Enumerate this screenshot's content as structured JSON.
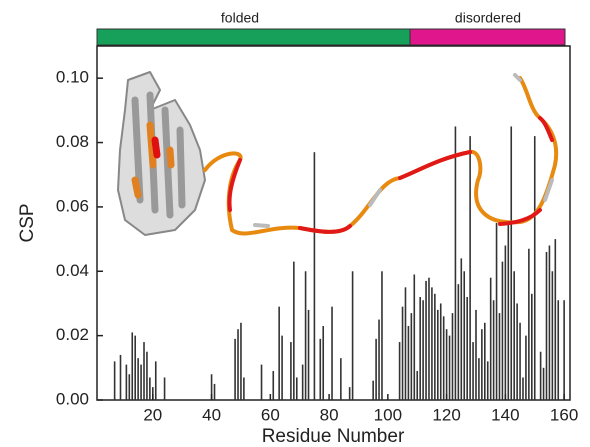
{
  "chart_data": {
    "type": "bar",
    "xlabel": "Residue Number",
    "ylabel": "CSP",
    "regions": [
      "folded",
      "disordered"
    ],
    "color": "#333333",
    "x": [
      7,
      9,
      11,
      12,
      13,
      14,
      15,
      16,
      17,
      18,
      19,
      20,
      21,
      24,
      40,
      41,
      48,
      49,
      50,
      51,
      57,
      61,
      63,
      64,
      67,
      68,
      69,
      71,
      72,
      73,
      75,
      77,
      78,
      81,
      84,
      87,
      88,
      95,
      96,
      97,
      98,
      104,
      105,
      106,
      107,
      108,
      109,
      110,
      111,
      112,
      113,
      114,
      115,
      116,
      117,
      118,
      119,
      120,
      121,
      122,
      123,
      124,
      125,
      126,
      127,
      128,
      129,
      130,
      131,
      132,
      133,
      134,
      135,
      136,
      137,
      138,
      139,
      140,
      141,
      142,
      143,
      144,
      145,
      146,
      147,
      148,
      149,
      150,
      152,
      153,
      154,
      155,
      156,
      157,
      158,
      160
    ],
    "values": [
      0.012,
      0.014,
      0.011,
      0.008,
      0.021,
      0.02,
      0.013,
      0.011,
      0.018,
      0.015,
      0.007,
      0.004,
      0.012,
      0.007,
      0.008,
      0.005,
      0.019,
      0.022,
      0.024,
      0.007,
      0.011,
      0.009,
      0.029,
      0.02,
      0.018,
      0.043,
      0.007,
      0.011,
      0.04,
      0.028,
      0.077,
      0.019,
      0.023,
      0.029,
      0.013,
      0.004,
      0.04,
      0.006,
      0.019,
      0.025,
      0.04,
      0.018,
      0.029,
      0.035,
      0.023,
      0.027,
      0.039,
      0.009,
      0.032,
      0.031,
      0.037,
      0.038,
      0.035,
      0.033,
      0.028,
      0.03,
      0.026,
      0.022,
      0.02,
      0.027,
      0.085,
      0.036,
      0.044,
      0.04,
      0.032,
      0.082,
      0.018,
      0.028,
      0.013,
      0.022,
      0.024,
      0.012,
      0.038,
      0.031,
      0.055,
      0.027,
      0.043,
      0.048,
      0.055,
      0.085,
      0.04,
      0.03,
      0.024,
      0.007,
      0.02,
      0.047,
      0.033,
      0.082,
      0.015,
      0.01,
      0.046,
      0.048,
      0.04,
      0.05,
      0.031,
      0.031
    ],
    "xlim": [
      1,
      162
    ],
    "xticks": [
      20,
      40,
      60,
      80,
      100,
      120,
      140,
      160
    ],
    "ylim": [
      0,
      0.11
    ],
    "yticks": [
      {
        "value": 0,
        "label": "0.00"
      },
      {
        "value": 0.02,
        "label": "0.02"
      },
      {
        "value": 0.04,
        "label": "0.04"
      },
      {
        "value": 0.06,
        "label": "0.06"
      },
      {
        "value": 0.08,
        "label": "0.08"
      },
      {
        "value": 0.1,
        "label": "0.10"
      }
    ]
  }
}
